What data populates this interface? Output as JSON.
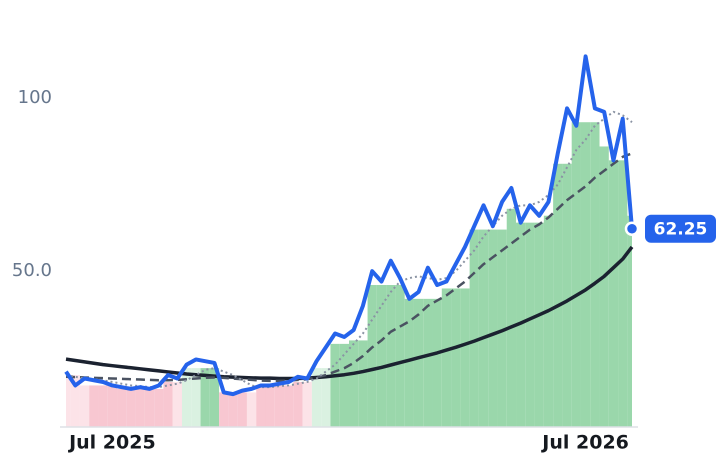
{
  "chart_data": {
    "type": "line",
    "categories": [
      null,
      null,
      null,
      null,
      null,
      "Jul 2025",
      null,
      null,
      null,
      null,
      null,
      null,
      null,
      null,
      null,
      null,
      null,
      null,
      null,
      null,
      null,
      null,
      null,
      null,
      null,
      null,
      null,
      null,
      null,
      null,
      null,
      null,
      null,
      null,
      null,
      null,
      null,
      null,
      null,
      null,
      null,
      null,
      null,
      null,
      null,
      null,
      null,
      null,
      null,
      null,
      null,
      null,
      null,
      null,
      null,
      null,
      "Jul 2026",
      null,
      null,
      null,
      null,
      null
    ],
    "ylim": [
      5,
      128
    ],
    "yticks": [
      {
        "value": 50,
        "label": "50.0"
      },
      100
    ],
    "series": [
      {
        "color": "#2563eb",
        "style": "solid",
        "width": 4,
        "values": [
          21,
          17,
          19,
          18.5,
          18,
          17,
          16.5,
          16,
          16.5,
          16,
          17,
          20,
          19,
          23,
          24.5,
          24,
          23.5,
          15,
          14.5,
          15.5,
          16,
          17,
          17,
          17.5,
          18,
          19.5,
          19,
          24,
          28,
          32,
          31,
          33,
          40,
          50,
          47,
          53,
          48,
          42,
          44,
          51,
          46,
          47,
          52,
          57,
          63,
          69,
          63,
          70,
          74,
          64,
          69,
          66,
          70,
          84,
          97,
          92,
          112,
          97,
          96,
          82,
          94,
          62.25
        ]
      },
      {
        "color": "#8a93a3",
        "style": "dotted",
        "width": 2,
        "values": [
          20,
          19.5,
          19,
          18.8,
          18.5,
          18,
          17.5,
          17,
          16.8,
          16.5,
          16.5,
          17,
          17.5,
          18.5,
          20,
          21.5,
          22,
          21,
          20,
          18.5,
          17,
          16.5,
          16.5,
          16.8,
          17,
          17.5,
          18,
          19,
          21,
          23,
          26,
          29,
          32,
          36,
          40,
          44,
          47,
          48,
          48.5,
          48,
          47.5,
          48,
          50,
          53,
          56,
          60,
          63,
          66,
          68,
          69,
          69,
          70,
          72,
          75,
          80,
          85,
          88,
          92,
          94,
          96,
          95,
          93
        ]
      },
      {
        "color": "#4a5261",
        "style": "dashed",
        "width": 2.5,
        "values": [
          19.5,
          19.4,
          19.3,
          19.2,
          19.1,
          19,
          18.9,
          18.8,
          18.7,
          18.6,
          18.5,
          18.5,
          18.6,
          18.8,
          19,
          19.2,
          19.3,
          19.2,
          19,
          18.8,
          18.6,
          18.4,
          18.3,
          18.3,
          18.4,
          18.6,
          18.8,
          19.3,
          20,
          21,
          22,
          23.5,
          25.5,
          28,
          30,
          32.5,
          34,
          35.5,
          37.5,
          40,
          41.5,
          43,
          45,
          47,
          49.5,
          52,
          54,
          56,
          58,
          60,
          62,
          63.5,
          65.5,
          68,
          70.5,
          72.5,
          74.5,
          77,
          79,
          81,
          83,
          84
        ]
      },
      {
        "color": "#1b2230",
        "style": "solid",
        "width": 3.5,
        "values": [
          24.6,
          24.2,
          23.8,
          23.4,
          23,
          22.7,
          22.4,
          22.1,
          21.8,
          21.5,
          21.2,
          20.9,
          20.6,
          20.3,
          20.1,
          19.9,
          19.7,
          19.5,
          19.4,
          19.3,
          19.2,
          19.1,
          19.1,
          19,
          19,
          19,
          19.1,
          19.3,
          19.5,
          19.8,
          20.1,
          20.5,
          21,
          21.6,
          22.2,
          22.9,
          23.6,
          24.3,
          25,
          25.7,
          26.4,
          27.2,
          28,
          28.9,
          29.8,
          30.8,
          31.8,
          32.8,
          33.9,
          35,
          36.2,
          37.4,
          38.6,
          40,
          41.4,
          43,
          44.6,
          46.5,
          48.5,
          51,
          53.5,
          57
        ]
      }
    ],
    "bars": {
      "values": [
        20,
        20,
        17,
        17,
        17,
        17,
        16,
        16,
        16,
        16,
        16,
        18,
        18,
        22,
        22,
        22,
        22,
        15,
        15,
        15,
        15,
        17,
        17,
        17,
        17,
        18,
        18,
        22,
        22,
        29,
        29,
        30,
        30,
        46,
        46,
        46,
        46,
        42,
        42,
        42,
        42,
        45,
        45,
        45,
        62,
        62,
        62,
        62,
        68,
        64,
        64,
        64,
        66,
        81,
        81,
        93,
        93,
        93,
        86,
        82,
        82,
        66
      ],
      "colors": [
        "#fce0e6",
        "#fce0e6",
        "#fce0e6",
        "#f7c1cc",
        "#f7c1cc",
        "#f7c1cc",
        "#f7c1cc",
        "#f7c1cc",
        "#f7c1cc",
        "#f7c1cc",
        "#f7c1cc",
        "#f7c1cc",
        "#fce0e6",
        "#d6efde",
        "#d6efde",
        "#8fd3a2",
        "#8fd3a2",
        "#f7c1cc",
        "#f7c1cc",
        "#f7c1cc",
        "#fce0e6",
        "#f7c1cc",
        "#f7c1cc",
        "#f7c1cc",
        "#f7c1cc",
        "#f7c1cc",
        "#fce0e6",
        "#d6efde",
        "#d6efde",
        "#8fd3a2",
        "#8fd3a2",
        "#8fd3a2",
        "#8fd3a2",
        "#8fd3a2",
        "#8fd3a2",
        "#8fd3a2",
        "#8fd3a2",
        "#8fd3a2",
        "#8fd3a2",
        "#8fd3a2",
        "#8fd3a2",
        "#8fd3a2",
        "#8fd3a2",
        "#8fd3a2",
        "#8fd3a2",
        "#8fd3a2",
        "#8fd3a2",
        "#8fd3a2",
        "#8fd3a2",
        "#8fd3a2",
        "#8fd3a2",
        "#8fd3a2",
        "#8fd3a2",
        "#8fd3a2",
        "#8fd3a2",
        "#8fd3a2",
        "#8fd3a2",
        "#8fd3a2",
        "#8fd3a2",
        "#8fd3a2",
        "#8fd3a2",
        "#8fd3a2"
      ]
    }
  }
}
